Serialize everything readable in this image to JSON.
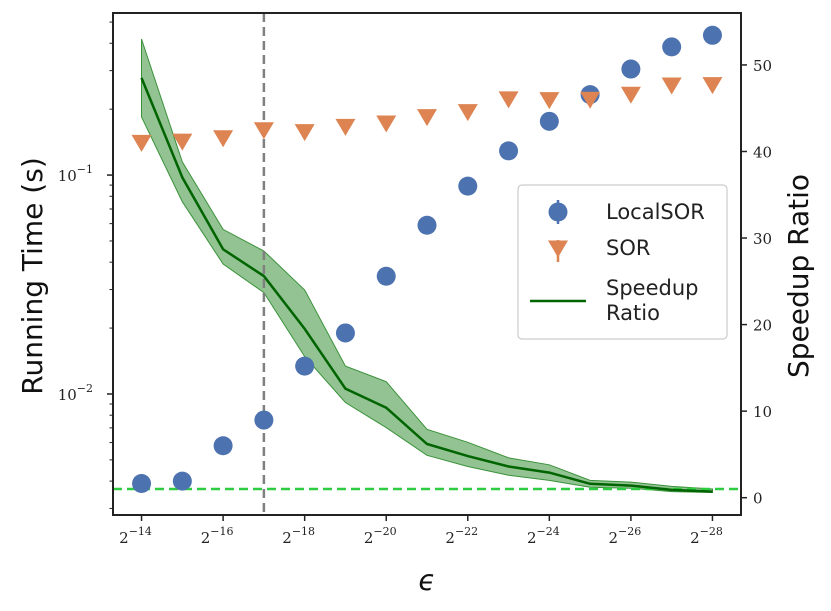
{
  "chart_data": {
    "type": "scatter+line",
    "xlabel": "ϵ",
    "ylabel_left": "Running Time (s)",
    "ylabel_right": "Speedup Ratio",
    "x_exponents": [
      -14,
      -15,
      -16,
      -17,
      -18,
      -19,
      -20,
      -21,
      -22,
      -23,
      -24,
      -25,
      -26,
      -27,
      -28
    ],
    "x_tick_exponents": [
      -14,
      -16,
      -18,
      -20,
      -22,
      -24,
      -26,
      -28
    ],
    "x_tick_base": "2",
    "left_axis": {
      "scale": "log",
      "ylim": [
        0.0028,
        0.55
      ],
      "ticks": [
        {
          "base": "10",
          "exp": "−1",
          "value": 0.1
        },
        {
          "base": "10",
          "exp": "−2",
          "value": 0.01
        }
      ]
    },
    "right_axis": {
      "scale": "linear",
      "ylim": [
        -2,
        56
      ],
      "ticks": [
        0,
        10,
        20,
        30,
        40,
        50
      ]
    },
    "series": [
      {
        "name": "LocalSOR",
        "axis": "left",
        "marker": "circle",
        "color": "#4c72b0",
        "values": [
          0.0039,
          0.004,
          0.0058,
          0.0076,
          0.0134,
          0.019,
          0.0345,
          0.059,
          0.089,
          0.129,
          0.176,
          0.233,
          0.305,
          0.385,
          0.435
        ]
      },
      {
        "name": "SOR",
        "axis": "left",
        "marker": "triangle-down",
        "color": "#dd8452",
        "values": [
          0.141,
          0.143,
          0.148,
          0.161,
          0.158,
          0.167,
          0.173,
          0.185,
          0.195,
          0.223,
          0.221,
          0.222,
          0.234,
          0.258,
          0.259
        ]
      },
      {
        "name": "Speedup Ratio",
        "axis": "right",
        "line": "solid",
        "color": "#006400",
        "values": [
          48.5,
          37.0,
          28.7,
          25.6,
          19.5,
          12.6,
          10.4,
          6.2,
          4.8,
          3.6,
          2.9,
          1.6,
          1.4,
          0.9,
          0.7
        ],
        "band_upper": [
          53.0,
          38.8,
          31.0,
          28.5,
          24.0,
          15.2,
          13.4,
          7.9,
          6.4,
          4.6,
          3.8,
          2.0,
          1.8,
          1.3,
          1.0
        ],
        "band_lower": [
          44.0,
          34.2,
          27.0,
          23.7,
          16.3,
          11.0,
          8.1,
          4.9,
          3.6,
          2.6,
          2.0,
          1.2,
          1.1,
          0.7,
          0.6
        ],
        "band_color": "#3a923a"
      }
    ],
    "reference_lines": [
      {
        "name": "vertical-threshold",
        "orientation": "vertical",
        "x_exponent": -17,
        "style": "dashed",
        "color": "#808080"
      },
      {
        "name": "speedup-one",
        "orientation": "horizontal",
        "axis": "right",
        "value": 1,
        "style": "dashed",
        "color": "#2ecc40"
      }
    ],
    "legend": {
      "placement": "center-right",
      "entries": [
        {
          "label": "LocalSOR",
          "kind": "circle",
          "color": "#4c72b0"
        },
        {
          "label": "SOR",
          "kind": "triangle-down",
          "color": "#dd8452"
        },
        {
          "label": "Speedup",
          "label2": "Ratio",
          "kind": "line",
          "color": "#006400"
        }
      ]
    }
  }
}
